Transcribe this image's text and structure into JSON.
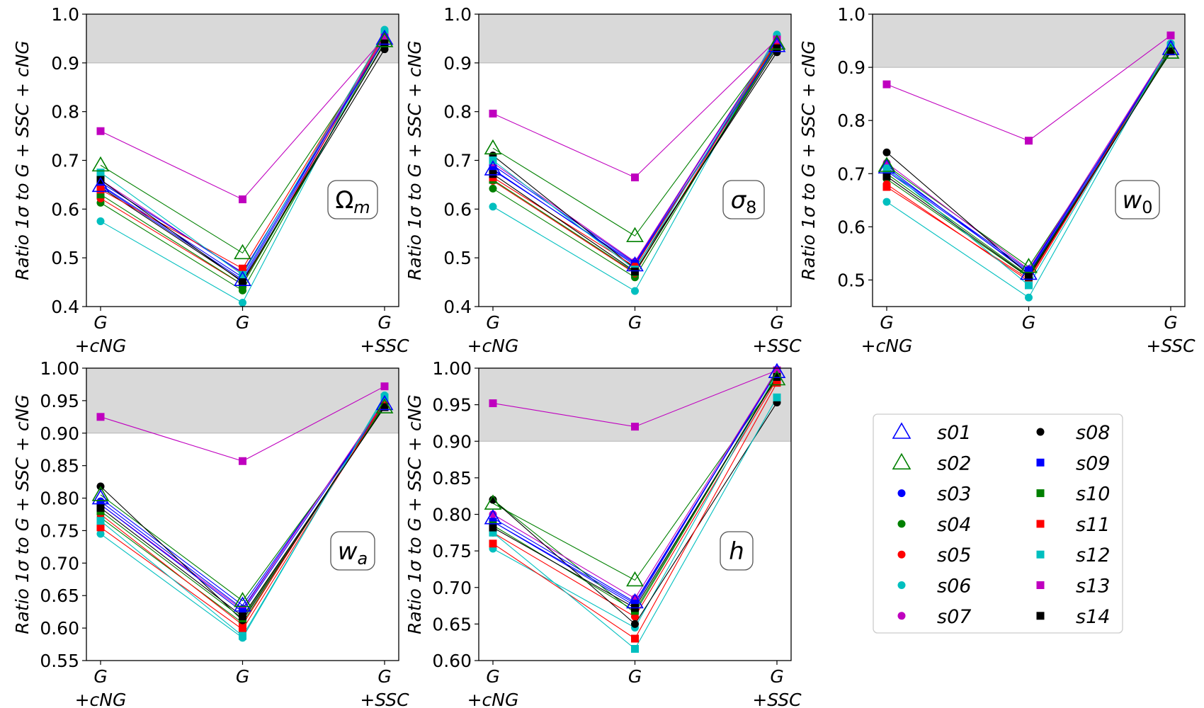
{
  "figure": {
    "ylabel": "Ratio 1σ to G + SSC + cNG",
    "xtick_labels": [
      [
        "G",
        "+cNG"
      ],
      [
        "G"
      ],
      [
        "G",
        "+SSC"
      ]
    ],
    "shaded_band": {
      "from": 0.9,
      "to": 1.0,
      "color": "#d9d9d9"
    },
    "legend_position": "lower-right"
  },
  "series_styles": [
    {
      "name": "s01",
      "marker": "triangle-open",
      "color": "#0000ff"
    },
    {
      "name": "s02",
      "marker": "triangle-open",
      "color": "#008000"
    },
    {
      "name": "s03",
      "marker": "circle",
      "color": "#0000ff"
    },
    {
      "name": "s04",
      "marker": "circle",
      "color": "#008000"
    },
    {
      "name": "s05",
      "marker": "circle",
      "color": "#ff0000"
    },
    {
      "name": "s06",
      "marker": "circle",
      "color": "#00bfbf"
    },
    {
      "name": "s07",
      "marker": "circle",
      "color": "#bf00bf"
    },
    {
      "name": "s08",
      "marker": "circle",
      "color": "#000000"
    },
    {
      "name": "s09",
      "marker": "square",
      "color": "#0000ff"
    },
    {
      "name": "s10",
      "marker": "square",
      "color": "#008000"
    },
    {
      "name": "s11",
      "marker": "square",
      "color": "#ff0000"
    },
    {
      "name": "s12",
      "marker": "square",
      "color": "#00bfbf"
    },
    {
      "name": "s13",
      "marker": "square",
      "color": "#bf00bf"
    },
    {
      "name": "s14",
      "marker": "square",
      "color": "#000000"
    }
  ],
  "chart_data": [
    {
      "type": "line",
      "param_label": "Ωm",
      "param_base": "Ω",
      "param_sub": "m",
      "categories": [
        "G +cNG",
        "G",
        "G +SSC"
      ],
      "ylim": [
        0.4,
        1.0
      ],
      "yticks": [
        "0.4",
        "0.5",
        "0.6",
        "0.7",
        "0.8",
        "0.9",
        "1.0"
      ],
      "series": [
        {
          "name": "s01",
          "values": [
            0.648,
            0.455,
            0.95
          ]
        },
        {
          "name": "s02",
          "values": [
            0.69,
            0.51,
            0.945
          ]
        },
        {
          "name": "s03",
          "values": [
            0.65,
            0.46,
            0.955
          ]
        },
        {
          "name": "s04",
          "values": [
            0.613,
            0.433,
            0.95
          ]
        },
        {
          "name": "s05",
          "values": [
            0.622,
            0.445,
            0.955
          ]
        },
        {
          "name": "s06",
          "values": [
            0.575,
            0.408,
            0.968
          ]
        },
        {
          "name": "s07",
          "values": [
            0.66,
            0.468,
            0.955
          ]
        },
        {
          "name": "s08",
          "values": [
            0.645,
            0.452,
            0.928
          ]
        },
        {
          "name": "s09",
          "values": [
            0.655,
            0.47,
            0.948
          ]
        },
        {
          "name": "s10",
          "values": [
            0.63,
            0.445,
            0.942
          ]
        },
        {
          "name": "s11",
          "values": [
            0.64,
            0.478,
            0.958
          ]
        },
        {
          "name": "s12",
          "values": [
            0.675,
            0.465,
            0.962
          ]
        },
        {
          "name": "s13",
          "values": [
            0.76,
            0.62,
            0.952
          ]
        },
        {
          "name": "s14",
          "values": [
            0.66,
            0.45,
            0.94
          ]
        }
      ]
    },
    {
      "type": "line",
      "param_label": "σ8",
      "param_base": "σ",
      "param_sub": "8",
      "categories": [
        "G +cNG",
        "G",
        "G +SSC"
      ],
      "ylim": [
        0.4,
        1.0
      ],
      "yticks": [
        "0.4",
        "0.5",
        "0.6",
        "0.7",
        "0.8",
        "0.9",
        "1.0"
      ],
      "series": [
        {
          "name": "s01",
          "values": [
            0.682,
            0.485,
            0.935
          ]
        },
        {
          "name": "s02",
          "values": [
            0.725,
            0.545,
            0.94
          ]
        },
        {
          "name": "s03",
          "values": [
            0.69,
            0.49,
            0.948
          ]
        },
        {
          "name": "s04",
          "values": [
            0.642,
            0.46,
            0.942
          ]
        },
        {
          "name": "s05",
          "values": [
            0.658,
            0.468,
            0.945
          ]
        },
        {
          "name": "s06",
          "values": [
            0.605,
            0.432,
            0.958
          ]
        },
        {
          "name": "s07",
          "values": [
            0.695,
            0.492,
            0.95
          ]
        },
        {
          "name": "s08",
          "values": [
            0.71,
            0.478,
            0.922
          ]
        },
        {
          "name": "s09",
          "values": [
            0.68,
            0.488,
            0.938
          ]
        },
        {
          "name": "s10",
          "values": [
            0.66,
            0.47,
            0.935
          ]
        },
        {
          "name": "s11",
          "values": [
            0.665,
            0.482,
            0.945
          ]
        },
        {
          "name": "s12",
          "values": [
            0.7,
            0.476,
            0.95
          ]
        },
        {
          "name": "s13",
          "values": [
            0.796,
            0.665,
            0.948
          ]
        },
        {
          "name": "s14",
          "values": [
            0.672,
            0.472,
            0.93
          ]
        }
      ]
    },
    {
      "type": "line",
      "param_label": "w0",
      "param_base": "w",
      "param_sub": "0",
      "categories": [
        "G +cNG",
        "G",
        "G +SSC"
      ],
      "ylim": [
        0.45,
        1.0
      ],
      "yticks": [
        "0.5",
        "0.6",
        "0.7",
        "0.8",
        "0.9",
        "1.0"
      ],
      "series": [
        {
          "name": "s01",
          "values": [
            0.712,
            0.512,
            0.935
          ]
        },
        {
          "name": "s02",
          "values": [
            0.715,
            0.525,
            0.928
          ]
        },
        {
          "name": "s03",
          "values": [
            0.705,
            0.515,
            0.94
          ]
        },
        {
          "name": "s04",
          "values": [
            0.69,
            0.505,
            0.935
          ]
        },
        {
          "name": "s05",
          "values": [
            0.68,
            0.498,
            0.938
          ]
        },
        {
          "name": "s06",
          "values": [
            0.647,
            0.467,
            0.945
          ]
        },
        {
          "name": "s07",
          "values": [
            0.72,
            0.52,
            0.942
          ]
        },
        {
          "name": "s08",
          "values": [
            0.74,
            0.51,
            0.93
          ]
        },
        {
          "name": "s09",
          "values": [
            0.708,
            0.518,
            0.936
          ]
        },
        {
          "name": "s10",
          "values": [
            0.7,
            0.508,
            0.932
          ]
        },
        {
          "name": "s11",
          "values": [
            0.675,
            0.502,
            0.938
          ]
        },
        {
          "name": "s12",
          "values": [
            0.71,
            0.49,
            0.94
          ]
        },
        {
          "name": "s13",
          "values": [
            0.868,
            0.762,
            0.96
          ]
        },
        {
          "name": "s14",
          "values": [
            0.695,
            0.506,
            0.93
          ]
        }
      ]
    },
    {
      "type": "line",
      "param_label": "wa",
      "param_base": "w",
      "param_sub": "a",
      "categories": [
        "G +cNG",
        "G",
        "G +SSC"
      ],
      "ylim": [
        0.55,
        1.0
      ],
      "yticks": [
        "0.55",
        "0.60",
        "0.65",
        "0.70",
        "0.75",
        "0.80",
        "0.85",
        "0.90",
        "0.95",
        "1.00"
      ],
      "series": [
        {
          "name": "s01",
          "values": [
            0.8,
            0.635,
            0.945
          ]
        },
        {
          "name": "s02",
          "values": [
            0.805,
            0.642,
            0.94
          ]
        },
        {
          "name": "s03",
          "values": [
            0.795,
            0.63,
            0.948
          ]
        },
        {
          "name": "s04",
          "values": [
            0.77,
            0.608,
            0.945
          ]
        },
        {
          "name": "s05",
          "values": [
            0.775,
            0.605,
            0.95
          ]
        },
        {
          "name": "s06",
          "values": [
            0.745,
            0.585,
            0.958
          ]
        },
        {
          "name": "s07",
          "values": [
            0.79,
            0.628,
            0.95
          ]
        },
        {
          "name": "s08",
          "values": [
            0.818,
            0.612,
            0.942
          ]
        },
        {
          "name": "s09",
          "values": [
            0.79,
            0.625,
            0.946
          ]
        },
        {
          "name": "s10",
          "values": [
            0.78,
            0.615,
            0.943
          ]
        },
        {
          "name": "s11",
          "values": [
            0.755,
            0.598,
            0.948
          ]
        },
        {
          "name": "s12",
          "values": [
            0.765,
            0.588,
            0.955
          ]
        },
        {
          "name": "s13",
          "values": [
            0.925,
            0.857,
            0.972
          ]
        },
        {
          "name": "s14",
          "values": [
            0.785,
            0.618,
            0.94
          ]
        }
      ]
    },
    {
      "type": "line",
      "param_label": "h",
      "param_base": "h",
      "param_sub": "",
      "categories": [
        "G +cNG",
        "G",
        "G +SSC"
      ],
      "ylim": [
        0.6,
        1.0
      ],
      "yticks": [
        "0.60",
        "0.65",
        "0.70",
        "0.75",
        "0.80",
        "0.85",
        "0.90",
        "0.95",
        "1.00"
      ],
      "series": [
        {
          "name": "s01",
          "values": [
            0.795,
            0.68,
            0.995
          ]
        },
        {
          "name": "s02",
          "values": [
            0.815,
            0.71,
            0.985
          ]
        },
        {
          "name": "s03",
          "values": [
            0.79,
            0.675,
            0.998
          ]
        },
        {
          "name": "s04",
          "values": [
            0.82,
            0.665,
            0.99
          ]
        },
        {
          "name": "s05",
          "values": [
            0.775,
            0.66,
            0.985
          ]
        },
        {
          "name": "s06",
          "values": [
            0.753,
            0.645,
            0.993
          ]
        },
        {
          "name": "s07",
          "values": [
            0.8,
            0.685,
            0.997
          ]
        },
        {
          "name": "s08",
          "values": [
            0.82,
            0.65,
            0.953
          ]
        },
        {
          "name": "s09",
          "values": [
            0.79,
            0.678,
            0.995
          ]
        },
        {
          "name": "s10",
          "values": [
            0.785,
            0.668,
            0.99
          ]
        },
        {
          "name": "s11",
          "values": [
            0.76,
            0.63,
            0.98
          ]
        },
        {
          "name": "s12",
          "values": [
            0.775,
            0.616,
            0.96
          ]
        },
        {
          "name": "s13",
          "values": [
            0.952,
            0.92,
            0.997
          ]
        },
        {
          "name": "s14",
          "values": [
            0.782,
            0.672,
            0.988
          ]
        }
      ]
    }
  ]
}
